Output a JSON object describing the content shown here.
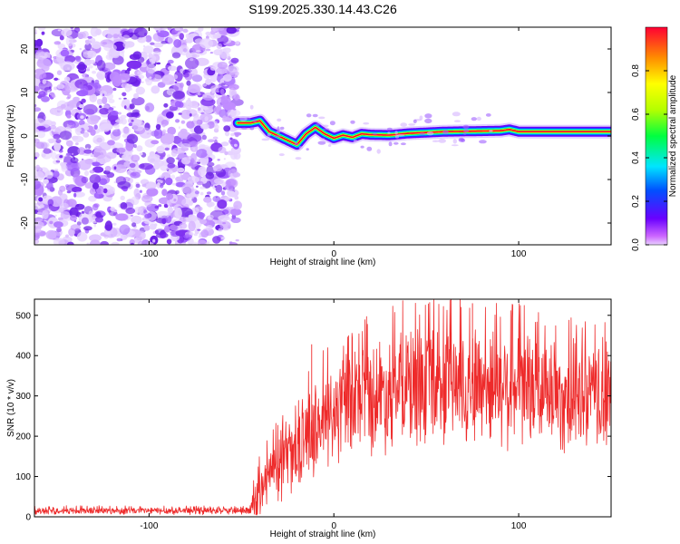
{
  "title": "S199.2025.330.14.43.C26",
  "colors": {
    "snr_line": "#ee2a2a",
    "speckle": "#8a2be2",
    "axis": "#000000"
  },
  "chart_data": [
    {
      "type": "heatmap",
      "xlabel": "Height of straight line (km)",
      "ylabel": "Frequency (Hz)",
      "xlim": [
        -162,
        150
      ],
      "ylim": [
        -25,
        25
      ],
      "xticks": [
        -100,
        0,
        100
      ],
      "yticks": [
        -20,
        -10,
        0,
        10,
        20
      ],
      "noise_region_x": [
        -162,
        -52
      ],
      "ridge": {
        "x": [
          -52,
          -45,
          -40,
          -35,
          -30,
          -25,
          -20,
          -15,
          -10,
          -5,
          0,
          5,
          10,
          15,
          20,
          30,
          40,
          60,
          90,
          95,
          100,
          150
        ],
        "freq": [
          3,
          3,
          3.5,
          1,
          0,
          -1,
          -2,
          0.5,
          2,
          0.5,
          -0.5,
          0.2,
          -0.3,
          0.5,
          0.3,
          0.2,
          0.6,
          1.0,
          1.2,
          1.5,
          1.0,
          1.0
        ]
      },
      "colorbar": {
        "label": "Normalized spectral amplitude",
        "range": [
          0,
          1
        ],
        "ticks": [
          "0.0",
          "0.2",
          "0.4",
          "0.6",
          "0.8"
        ],
        "tick_values": [
          0,
          0.2,
          0.4,
          0.6,
          0.8
        ]
      }
    },
    {
      "type": "line",
      "xlabel": "Height of straight line (km)",
      "ylabel": "SNR (10 * v/v)",
      "xlim": [
        -162,
        150
      ],
      "ylim": [
        0,
        540
      ],
      "xticks": [
        -100,
        0,
        100
      ],
      "yticks": [
        0,
        100,
        200,
        300,
        400,
        500
      ],
      "envelope": {
        "x": [
          -162,
          -45,
          -43,
          -35,
          -25,
          -15,
          -5,
          5,
          20,
          40,
          60,
          80,
          100,
          120,
          150
        ],
        "base": [
          15,
          15,
          40,
          100,
          140,
          200,
          240,
          270,
          300,
          320,
          330,
          330,
          320,
          300,
          290
        ],
        "amp": [
          10,
          10,
          60,
          90,
          100,
          120,
          140,
          150,
          160,
          170,
          170,
          170,
          165,
          160,
          150
        ]
      },
      "spikes": [
        {
          "x": -12,
          "y": 428
        },
        {
          "x": 75,
          "y": 530
        },
        {
          "x": 148,
          "y": 410
        }
      ]
    }
  ]
}
